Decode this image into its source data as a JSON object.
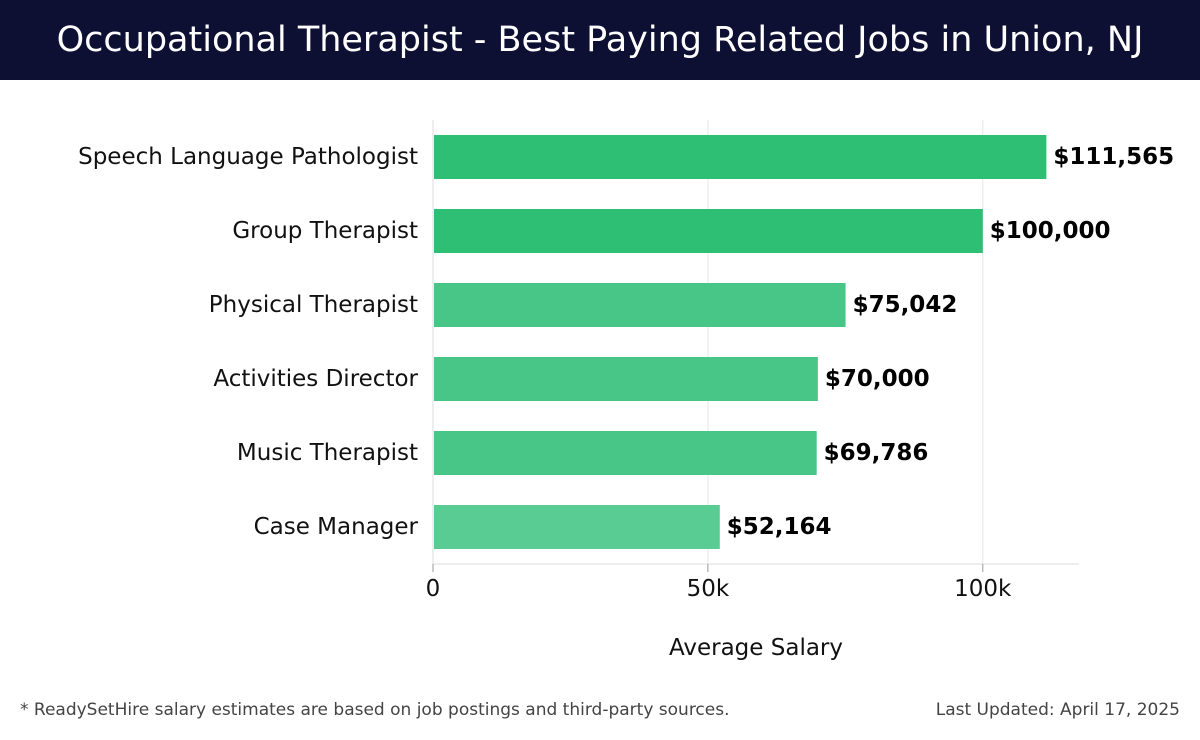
{
  "header": {
    "title": "Occupational Therapist - Best Paying Related Jobs in Union, NJ"
  },
  "chart_data": {
    "type": "bar",
    "orientation": "horizontal",
    "title": "Occupational Therapist - Best Paying Related Jobs in Union, NJ",
    "xlabel": "Average Salary",
    "ylabel": "",
    "categories": [
      "Speech Language Pathologist",
      "Group Therapist",
      "Physical Therapist",
      "Activities Director",
      "Music Therapist",
      "Case Manager"
    ],
    "values": [
      111565,
      100000,
      75042,
      70000,
      69786,
      52164
    ],
    "value_labels": [
      "$111,565",
      "$100,000",
      "$75,042",
      "$70,000",
      "$69,786",
      "$52,164"
    ],
    "xlim": [
      0,
      117500
    ],
    "x_ticks": [
      0,
      50000,
      100000
    ],
    "x_tick_labels": [
      "0",
      "50k",
      "100k"
    ],
    "grid": "vertical",
    "bar_colors": [
      "#2ebf75",
      "#2ebf75",
      "#48c687",
      "#48c687",
      "#48c687",
      "#58cc93"
    ]
  },
  "footer": {
    "note": "* ReadySetHire salary estimates are based on job postings and third-party sources.",
    "updated": "Last Updated: April 17, 2025"
  }
}
